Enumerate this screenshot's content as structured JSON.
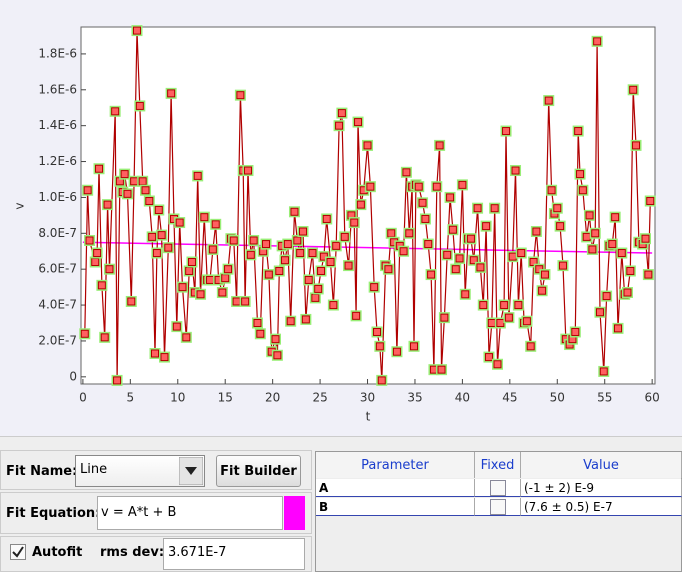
{
  "chart_data": {
    "type": "line",
    "x_label": "t",
    "y_label": "v",
    "xlim": [
      -0.2,
      60.3
    ],
    "xticks": [
      0,
      5,
      10,
      15,
      20,
      25,
      30,
      35,
      40,
      45,
      50,
      55,
      60
    ],
    "ylim": [
      -4e-08,
      1.95e-06
    ],
    "yticks": [
      0,
      {
        "value": 2e-07,
        "label": "2.0E-7"
      },
      {
        "value": 4e-07,
        "label": "4.0E-7"
      },
      {
        "value": 6e-07,
        "label": "6.0E-7"
      },
      {
        "value": 8e-07,
        "label": "8.0E-7"
      },
      {
        "value": 1e-06,
        "label": "1.0E-6"
      },
      {
        "value": 1.2e-06,
        "label": "1.2E-6"
      },
      {
        "value": 1.4e-06,
        "label": "1.4E-6"
      },
      {
        "value": 1.6e-06,
        "label": "1.6E-6"
      },
      {
        "value": 1.8e-06,
        "label": "1.8E-6"
      }
    ],
    "series": [
      {
        "color": "#b00000",
        "x": [
          0.2,
          0.5,
          0.7,
          1.3,
          1.5,
          1.7,
          2.0,
          2.3,
          2.6,
          2.8,
          3.4,
          3.6,
          3.9,
          4.2,
          4.4,
          4.7,
          5.1,
          5.4,
          5.7,
          6.0,
          6.3,
          6.6,
          7.0,
          7.3,
          7.6,
          7.8,
          8.0,
          8.3,
          8.6,
          9.0,
          9.3,
          9.6,
          9.9,
          10.2,
          10.5,
          10.9,
          11.2,
          11.5,
          11.8,
          12.1,
          12.4,
          12.8,
          13.1,
          13.4,
          13.7,
          14.0,
          14.3,
          14.7,
          15.0,
          15.3,
          15.6,
          15.9,
          16.2,
          16.6,
          16.9,
          17.1,
          17.4,
          17.7,
          18.0,
          18.4,
          18.7,
          19.0,
          19.3,
          19.6,
          19.9,
          20.3,
          20.5,
          20.7,
          21.0,
          21.3,
          21.6,
          21.9,
          22.3,
          22.6,
          22.9,
          23.2,
          23.5,
          23.8,
          24.2,
          24.5,
          24.8,
          25.1,
          25.4,
          25.7,
          26.1,
          26.4,
          26.7,
          27.0,
          27.3,
          27.6,
          28.0,
          28.3,
          28.6,
          28.8,
          29.0,
          29.3,
          29.6,
          30.0,
          30.3,
          30.7,
          31.0,
          31.3,
          31.5,
          31.9,
          32.2,
          32.5,
          32.8,
          33.1,
          33.4,
          33.8,
          34.1,
          34.4,
          34.7,
          34.9,
          35.1,
          35.4,
          35.8,
          36.1,
          36.4,
          36.7,
          37.0,
          37.3,
          37.6,
          37.8,
          38.1,
          38.4,
          38.7,
          39.0,
          39.3,
          39.7,
          40.0,
          40.3,
          40.6,
          40.9,
          41.2,
          41.6,
          41.9,
          42.2,
          42.5,
          42.8,
          43.1,
          43.4,
          43.7,
          44.0,
          44.4,
          44.6,
          44.9,
          45.3,
          45.6,
          45.9,
          46.2,
          46.5,
          46.8,
          47.2,
          47.5,
          47.8,
          48.1,
          48.4,
          48.7,
          49.1,
          49.4,
          49.7,
          50.0,
          50.3,
          50.6,
          50.9,
          51.3,
          51.6,
          51.9,
          52.2,
          52.4,
          52.7,
          53.1,
          53.4,
          53.7,
          54.0,
          54.2,
          54.5,
          54.9,
          55.2,
          55.5,
          55.8,
          56.1,
          56.4,
          56.8,
          57.1,
          57.4,
          57.7,
          58.0,
          58.3,
          58.6,
          59.0,
          59.3,
          59.6,
          59.8
        ],
        "values": [
          2.4e-07,
          1.04e-06,
          7.6e-07,
          6.4e-07,
          6.9e-07,
          1.16e-06,
          5.1e-07,
          2.2e-07,
          9.6e-07,
          6e-07,
          1.48e-06,
          -2e-08,
          1.09e-06,
          1.03e-06,
          1.13e-06,
          1.02e-06,
          4.2e-07,
          1.09e-06,
          1.93e-06,
          1.51e-06,
          1.09e-06,
          1.04e-06,
          9.8e-07,
          7.8e-07,
          1.3e-07,
          6.9e-07,
          9.3e-07,
          7.9e-07,
          1.1e-07,
          7.2e-07,
          1.58e-06,
          8.8e-07,
          2.8e-07,
          8.6e-07,
          5e-07,
          2.2e-07,
          5.9e-07,
          6.4e-07,
          4.7e-07,
          1.12e-06,
          4.6e-07,
          8.9e-07,
          5.4e-07,
          5.4e-07,
          7.1e-07,
          8.5e-07,
          5.4e-07,
          4.7e-07,
          5.5e-07,
          6e-07,
          7.7e-07,
          7.6e-07,
          4.2e-07,
          1.57e-06,
          1.15e-06,
          4.2e-07,
          1.15e-06,
          6.8e-07,
          7.6e-07,
          3e-07,
          2.4e-07,
          7e-07,
          7.4e-07,
          5.7e-07,
          1.4e-07,
          2.1e-07,
          1.2e-07,
          5.9e-07,
          7.3e-07,
          6.5e-07,
          7.4e-07,
          3.1e-07,
          9.2e-07,
          7.6e-07,
          6.9e-07,
          8.1e-07,
          3.2e-07,
          5.4e-07,
          6.9e-07,
          4.4e-07,
          4.9e-07,
          5.9e-07,
          6.7e-07,
          8.8e-07,
          6.4e-07,
          4e-07,
          7.3e-07,
          1.4e-06,
          1.47e-06,
          7.8e-07,
          6.2e-07,
          9e-07,
          8.6e-07,
          3.4e-07,
          1.42e-06,
          9.6e-07,
          1.04e-06,
          1.29e-06,
          1.06e-06,
          5e-07,
          2.5e-07,
          1.7e-07,
          -2e-08,
          6.2e-07,
          6e-07,
          8e-07,
          7.5e-07,
          1.4e-07,
          7.3e-07,
          7e-07,
          1.14e-06,
          8e-07,
          1.06e-06,
          1.7e-07,
          1.07e-06,
          1.06e-06,
          9.7e-07,
          8.8e-07,
          7.4e-07,
          5.7e-07,
          4e-08,
          1.06e-06,
          1.29e-06,
          4e-08,
          3.3e-07,
          6.8e-07,
          1e-06,
          8.2e-07,
          6e-07,
          6.6e-07,
          1.07e-06,
          4.6e-07,
          7.7e-07,
          7.7e-07,
          6.5e-07,
          9.4e-07,
          6.1e-07,
          4e-07,
          8.4e-07,
          1.1e-07,
          3e-07,
          9.4e-07,
          7e-08,
          3e-07,
          4e-07,
          1.37e-06,
          3.3e-07,
          6.7e-07,
          1.15e-06,
          4e-07,
          6.9e-07,
          3e-07,
          3.1e-07,
          1.7e-07,
          6.4e-07,
          8.1e-07,
          6e-07,
          4.8e-07,
          5.7e-07,
          1.54e-06,
          1.04e-06,
          9.1e-07,
          9.4e-07,
          8.4e-07,
          6.2e-07,
          2.1e-07,
          1.8e-07,
          2.1e-07,
          2.5e-07,
          1.37e-06,
          1.13e-06,
          1.04e-06,
          7.8e-07,
          9e-07,
          7.1e-07,
          8e-07,
          1.87e-06,
          3.6e-07,
          3e-08,
          4.5e-07,
          7.3e-07,
          7.4e-07,
          8.9e-07,
          2.7e-07,
          6.9e-07,
          4.6e-07,
          4.7e-07,
          5.9e-07,
          1.6e-06,
          1.29e-06,
          7.5e-07,
          7.4e-07,
          7.7e-07,
          5.7e-07,
          9.8e-07
        ]
      }
    ],
    "fit": {
      "color": "#ff00ff",
      "x": [
        0,
        60
      ],
      "values": [
        7.5e-07,
        6.9e-07
      ]
    }
  },
  "panel": {
    "fit_name_label": "Fit Name:",
    "fit_name": "Line",
    "fit_builder": "Fit Builder",
    "fit_equation_label": "Fit Equation:",
    "fit_equation": "v = A*t + B",
    "autofit": "Autofit",
    "rms_label": "rms dev:",
    "rms_value": "3.671E-7",
    "table": {
      "headers": [
        "Parameter",
        "Fixed",
        "Value"
      ],
      "rows": [
        [
          "A",
          "(-1 ± 2) E-9"
        ],
        [
          "B",
          "(7.6 ± 0.5) E-7"
        ]
      ]
    }
  }
}
